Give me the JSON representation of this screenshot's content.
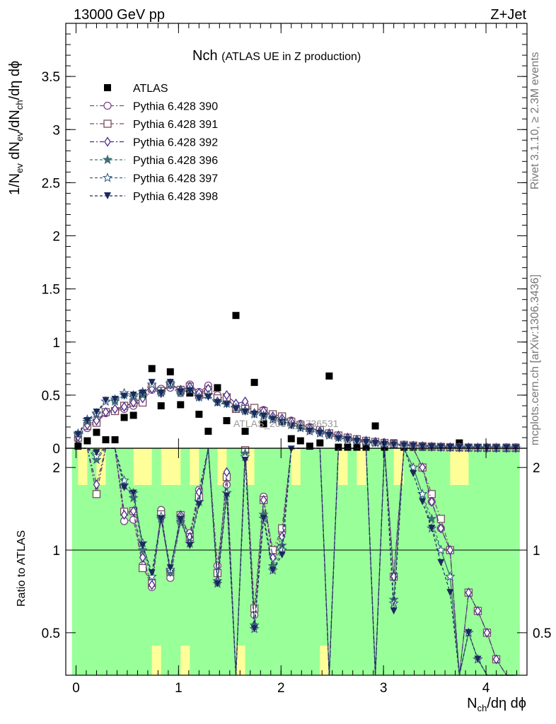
{
  "header": {
    "energy": "13000 GeV pp",
    "process": "Z+Jet"
  },
  "title": {
    "main": "Nch",
    "sub": "(ATLAS UE in Z production)"
  },
  "side": {
    "rivet": "Rivet 3.1.10, ≥ 2.3M events",
    "mcplots": "mcplots.cern.ch [arXiv:1306.3436]"
  },
  "watermark": "ATLAS_2019_I1736531",
  "axes": {
    "ylabel_main": "1/N_ev dN_ev/dN_ch/dη dϕ",
    "ylabel_ratio": "Ratio to ATLAS",
    "xlabel": "N_ch/dη dϕ",
    "main_yticks": [
      "0",
      "0.5",
      "1",
      "1.5",
      "2",
      "2.5",
      "3",
      "3.5"
    ],
    "ratio_yticks": [
      "0.5",
      "1",
      "2"
    ],
    "xticks": [
      "0",
      "1",
      "2",
      "3",
      "4"
    ]
  },
  "colors": {
    "p390": "#7b4a8a",
    "p391": "#7a4f5e",
    "p392": "#4b2a8a",
    "p396": "#3f6f76",
    "p397": "#3a5f82",
    "p398": "#1a2a5c",
    "band_green": "#99ff99",
    "band_yellow": "#ffff99"
  },
  "chart_data": {
    "type": "scatter",
    "xlim": [
      -0.1,
      4.4
    ],
    "ylim_main": [
      0,
      4.0
    ],
    "ylim_ratio": [
      0.35,
      2.35
    ],
    "ratio_log": true,
    "legend_position": "top-left",
    "series": [
      {
        "name": "ATLAS",
        "marker": "square-filled",
        "color": "#000000",
        "x": [
          0.02,
          0.11,
          0.2,
          0.29,
          0.38,
          0.47,
          0.56,
          0.65,
          0.74,
          0.83,
          0.92,
          1.02,
          1.11,
          1.2,
          1.29,
          1.38,
          1.47,
          1.56,
          1.65,
          1.74,
          1.83,
          1.92,
          2.01,
          2.1,
          2.19,
          2.28,
          2.38,
          2.47,
          2.56,
          2.65,
          2.74,
          2.83,
          2.92,
          3.01,
          3.1,
          3.2,
          3.29,
          3.38,
          3.47,
          3.56,
          3.65,
          3.74,
          3.83,
          3.92,
          4.01,
          4.1,
          4.2,
          4.29
        ],
        "y": [
          0.02,
          0.07,
          0.15,
          0.08,
          0.08,
          0.29,
          0.31,
          0.5,
          0.75,
          0.4,
          0.72,
          0.41,
          0.52,
          0.32,
          0.16,
          0.57,
          0.26,
          1.25,
          0.16,
          0.62,
          0.23,
          0.32,
          0.25,
          0.09,
          0.07,
          0.02,
          0.05,
          0.68,
          0.01,
          0.01,
          0.01,
          0.01,
          0.21,
          0.01,
          0.05,
          0.01,
          0.01,
          0.01,
          0.01,
          0.01,
          0.01,
          0.05,
          0.01,
          0.01,
          0.01,
          0.01,
          0.01,
          0.01
        ]
      },
      {
        "name": "Pythia 6.428 390",
        "marker": "circle-open",
        "color": "#7b4a8a",
        "x": [
          0.02,
          0.11,
          0.2,
          0.29,
          0.38,
          0.47,
          0.56,
          0.65,
          0.74,
          0.83,
          0.92,
          1.02,
          1.11,
          1.2,
          1.29,
          1.38,
          1.47,
          1.56,
          1.65,
          1.74,
          1.83,
          1.92,
          2.01,
          2.1,
          2.19,
          2.28,
          2.38,
          2.47,
          2.56,
          2.65,
          2.74,
          2.83,
          2.92,
          3.01,
          3.1,
          3.2,
          3.29,
          3.38,
          3.47,
          3.56,
          3.65,
          3.74,
          3.83,
          3.92,
          4.01,
          4.1,
          4.2,
          4.29
        ],
        "y": [
          0.09,
          0.19,
          0.24,
          0.33,
          0.35,
          0.37,
          0.4,
          0.44,
          0.55,
          0.56,
          0.57,
          0.52,
          0.6,
          0.53,
          0.59,
          0.5,
          0.45,
          0.39,
          0.4,
          0.36,
          0.36,
          0.31,
          0.29,
          0.26,
          0.23,
          0.2,
          0.17,
          0.14,
          0.12,
          0.1,
          0.08,
          0.07,
          0.06,
          0.05,
          0.04,
          0.03,
          0.025,
          0.02,
          0.015,
          0.012,
          0.01,
          0.008,
          0.007,
          0.006,
          0.005,
          0.004,
          0.003,
          0.003
        ]
      },
      {
        "name": "Pythia 6.428 391",
        "marker": "square-open",
        "color": "#7a4f5e",
        "x": [
          0.02,
          0.11,
          0.2,
          0.29,
          0.38,
          0.47,
          0.56,
          0.65,
          0.74,
          0.83,
          0.92,
          1.02,
          1.11,
          1.2,
          1.29,
          1.38,
          1.47,
          1.56,
          1.65,
          1.74,
          1.83,
          1.92,
          2.01,
          2.1,
          2.19,
          2.28,
          2.38,
          2.47,
          2.56,
          2.65,
          2.74,
          2.83,
          2.92,
          3.01,
          3.1,
          3.2,
          3.29,
          3.38,
          3.47,
          3.56,
          3.65,
          3.74,
          3.83,
          3.92,
          4.01,
          4.1,
          4.2,
          4.29
        ],
        "y": [
          0.1,
          0.21,
          0.24,
          0.34,
          0.35,
          0.4,
          0.43,
          0.43,
          0.57,
          0.54,
          0.6,
          0.55,
          0.58,
          0.5,
          0.55,
          0.47,
          0.48,
          0.37,
          0.37,
          0.38,
          0.35,
          0.32,
          0.3,
          0.25,
          0.22,
          0.19,
          0.17,
          0.14,
          0.12,
          0.1,
          0.085,
          0.07,
          0.06,
          0.05,
          0.04,
          0.032,
          0.026,
          0.02,
          0.016,
          0.013,
          0.01,
          0.008,
          0.007,
          0.006,
          0.005,
          0.004,
          0.003,
          0.003
        ]
      },
      {
        "name": "Pythia 6.428 392",
        "marker": "diamond-open",
        "color": "#4b2a8a",
        "x": [
          0.02,
          0.11,
          0.2,
          0.29,
          0.38,
          0.47,
          0.56,
          0.65,
          0.74,
          0.83,
          0.92,
          1.02,
          1.11,
          1.2,
          1.29,
          1.38,
          1.47,
          1.56,
          1.65,
          1.74,
          1.83,
          1.92,
          2.01,
          2.1,
          2.19,
          2.28,
          2.38,
          2.47,
          2.56,
          2.65,
          2.74,
          2.83,
          2.92,
          3.01,
          3.1,
          3.2,
          3.29,
          3.38,
          3.47,
          3.56,
          3.65,
          3.74,
          3.83,
          3.92,
          4.01,
          4.1,
          4.2,
          4.29
        ],
        "y": [
          0.11,
          0.22,
          0.26,
          0.34,
          0.37,
          0.39,
          0.43,
          0.47,
          0.56,
          0.52,
          0.6,
          0.55,
          0.58,
          0.52,
          0.56,
          0.44,
          0.5,
          0.42,
          0.44,
          0.33,
          0.35,
          0.3,
          0.28,
          0.25,
          0.22,
          0.19,
          0.16,
          0.14,
          0.12,
          0.1,
          0.08,
          0.07,
          0.06,
          0.05,
          0.04,
          0.03,
          0.025,
          0.02,
          0.015,
          0.012,
          0.01,
          0.008,
          0.007,
          0.006,
          0.005,
          0.004,
          0.003,
          0.003
        ]
      },
      {
        "name": "Pythia 6.428 396",
        "marker": "star-filled",
        "color": "#3f6f76",
        "x": [
          0.02,
          0.11,
          0.2,
          0.29,
          0.38,
          0.47,
          0.56,
          0.65,
          0.74,
          0.83,
          0.92,
          1.02,
          1.11,
          1.2,
          1.29,
          1.38,
          1.47,
          1.56,
          1.65,
          1.74,
          1.83,
          1.92,
          2.01,
          2.1,
          2.19,
          2.28,
          2.38,
          2.47,
          2.56,
          2.65,
          2.74,
          2.83,
          2.92,
          3.01,
          3.1,
          3.2,
          3.29,
          3.38,
          3.47,
          3.56,
          3.65,
          3.74,
          3.83,
          3.92,
          4.01,
          4.1,
          4.2,
          4.29
        ],
        "y": [
          0.13,
          0.25,
          0.32,
          0.44,
          0.44,
          0.5,
          0.48,
          0.5,
          0.6,
          0.52,
          0.6,
          0.52,
          0.55,
          0.48,
          0.5,
          0.43,
          0.42,
          0.38,
          0.36,
          0.33,
          0.31,
          0.28,
          0.26,
          0.22,
          0.2,
          0.17,
          0.15,
          0.13,
          0.1,
          0.085,
          0.07,
          0.06,
          0.05,
          0.04,
          0.033,
          0.026,
          0.02,
          0.016,
          0.013,
          0.01,
          0.008,
          0.006,
          0.005,
          0.004,
          0.003,
          0.003,
          0.002,
          0.002
        ]
      },
      {
        "name": "Pythia 6.428 397",
        "marker": "star-open",
        "color": "#3a5f82",
        "x": [
          0.02,
          0.11,
          0.2,
          0.29,
          0.38,
          0.47,
          0.56,
          0.65,
          0.74,
          0.83,
          0.92,
          1.02,
          1.11,
          1.2,
          1.29,
          1.38,
          1.47,
          1.56,
          1.65,
          1.74,
          1.83,
          1.92,
          2.01,
          2.1,
          2.19,
          2.28,
          2.38,
          2.47,
          2.56,
          2.65,
          2.74,
          2.83,
          2.92,
          3.01,
          3.1,
          3.2,
          3.29,
          3.38,
          3.47,
          3.56,
          3.65,
          3.74,
          3.83,
          3.92,
          4.01,
          4.1,
          4.2,
          4.29
        ],
        "y": [
          0.14,
          0.27,
          0.33,
          0.44,
          0.46,
          0.52,
          0.5,
          0.53,
          0.6,
          0.53,
          0.61,
          0.54,
          0.55,
          0.48,
          0.5,
          0.44,
          0.42,
          0.38,
          0.35,
          0.32,
          0.3,
          0.27,
          0.25,
          0.22,
          0.19,
          0.16,
          0.14,
          0.12,
          0.1,
          0.08,
          0.07,
          0.06,
          0.05,
          0.04,
          0.032,
          0.025,
          0.02,
          0.016,
          0.012,
          0.01,
          0.008,
          0.006,
          0.005,
          0.004,
          0.003,
          0.003,
          0.002,
          0.002
        ]
      },
      {
        "name": "Pythia 6.428 398",
        "marker": "triangle-down-filled",
        "color": "#1a2a5c",
        "x": [
          0.02,
          0.11,
          0.2,
          0.29,
          0.38,
          0.47,
          0.56,
          0.65,
          0.74,
          0.83,
          0.92,
          1.02,
          1.11,
          1.2,
          1.29,
          1.38,
          1.47,
          1.56,
          1.65,
          1.74,
          1.83,
          1.92,
          2.01,
          2.1,
          2.19,
          2.28,
          2.38,
          2.47,
          2.56,
          2.65,
          2.74,
          2.83,
          2.92,
          3.01,
          3.1,
          3.2,
          3.29,
          3.38,
          3.47,
          3.56,
          3.65,
          3.74,
          3.83,
          3.92,
          4.01,
          4.1,
          4.2,
          4.29
        ],
        "y": [
          0.13,
          0.26,
          0.34,
          0.45,
          0.46,
          0.49,
          0.5,
          0.52,
          0.62,
          0.52,
          0.62,
          0.53,
          0.54,
          0.47,
          0.48,
          0.43,
          0.41,
          0.37,
          0.34,
          0.32,
          0.3,
          0.27,
          0.24,
          0.21,
          0.19,
          0.16,
          0.14,
          0.12,
          0.09,
          0.08,
          0.065,
          0.055,
          0.045,
          0.036,
          0.03,
          0.024,
          0.019,
          0.015,
          0.012,
          0.009,
          0.007,
          0.006,
          0.005,
          0.004,
          0.003,
          0.002,
          0.002,
          0.002
        ]
      }
    ]
  }
}
